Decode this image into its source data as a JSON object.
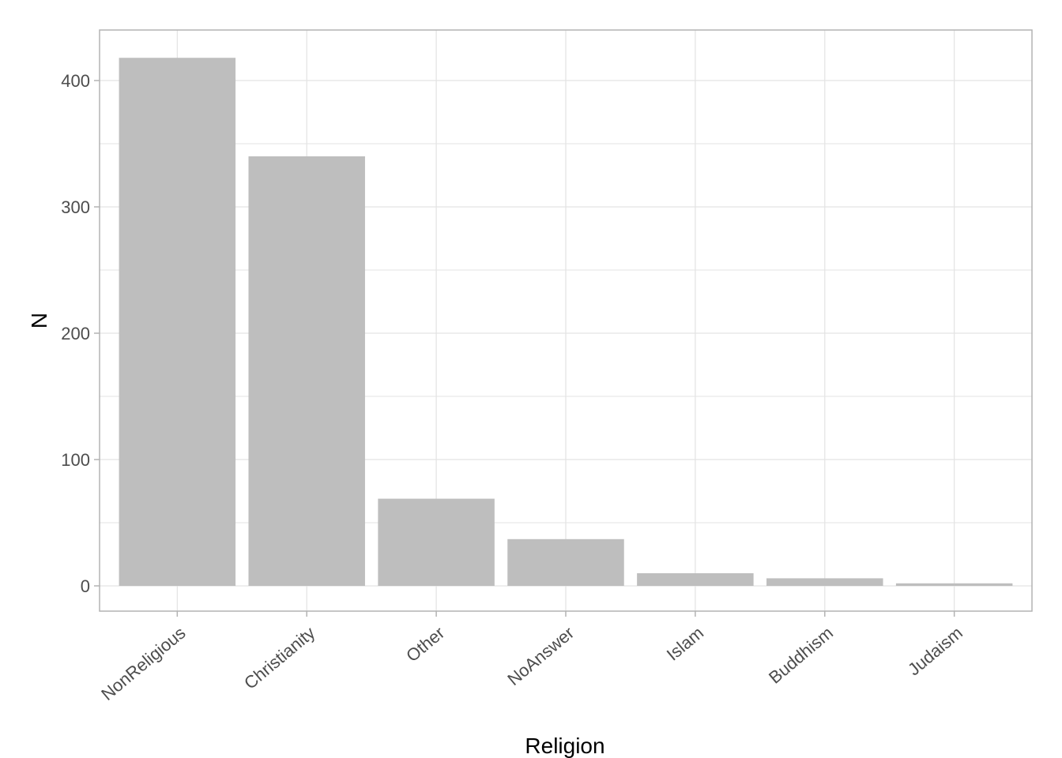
{
  "chart_data": {
    "type": "bar",
    "title": "",
    "xlabel": "Religion",
    "ylabel": "N",
    "categories": [
      "NonReligious",
      "Christianity",
      "Other",
      "NoAnswer",
      "Islam",
      "Buddhism",
      "Judaism"
    ],
    "values": [
      418,
      340,
      69,
      37,
      10,
      6,
      2
    ],
    "ylim": [
      -20,
      440
    ],
    "yticks": [
      0,
      100,
      200,
      300,
      400
    ],
    "ytick_labels": [
      "0",
      "100",
      "200",
      "300",
      "400"
    ],
    "grid": true,
    "legend": "none",
    "colors": {
      "bar": "#bebebe",
      "grid": "#e3e3e3",
      "border": "#b3b3b3",
      "tick_label": "#4d4d4d",
      "axis_title": "#000000"
    }
  }
}
